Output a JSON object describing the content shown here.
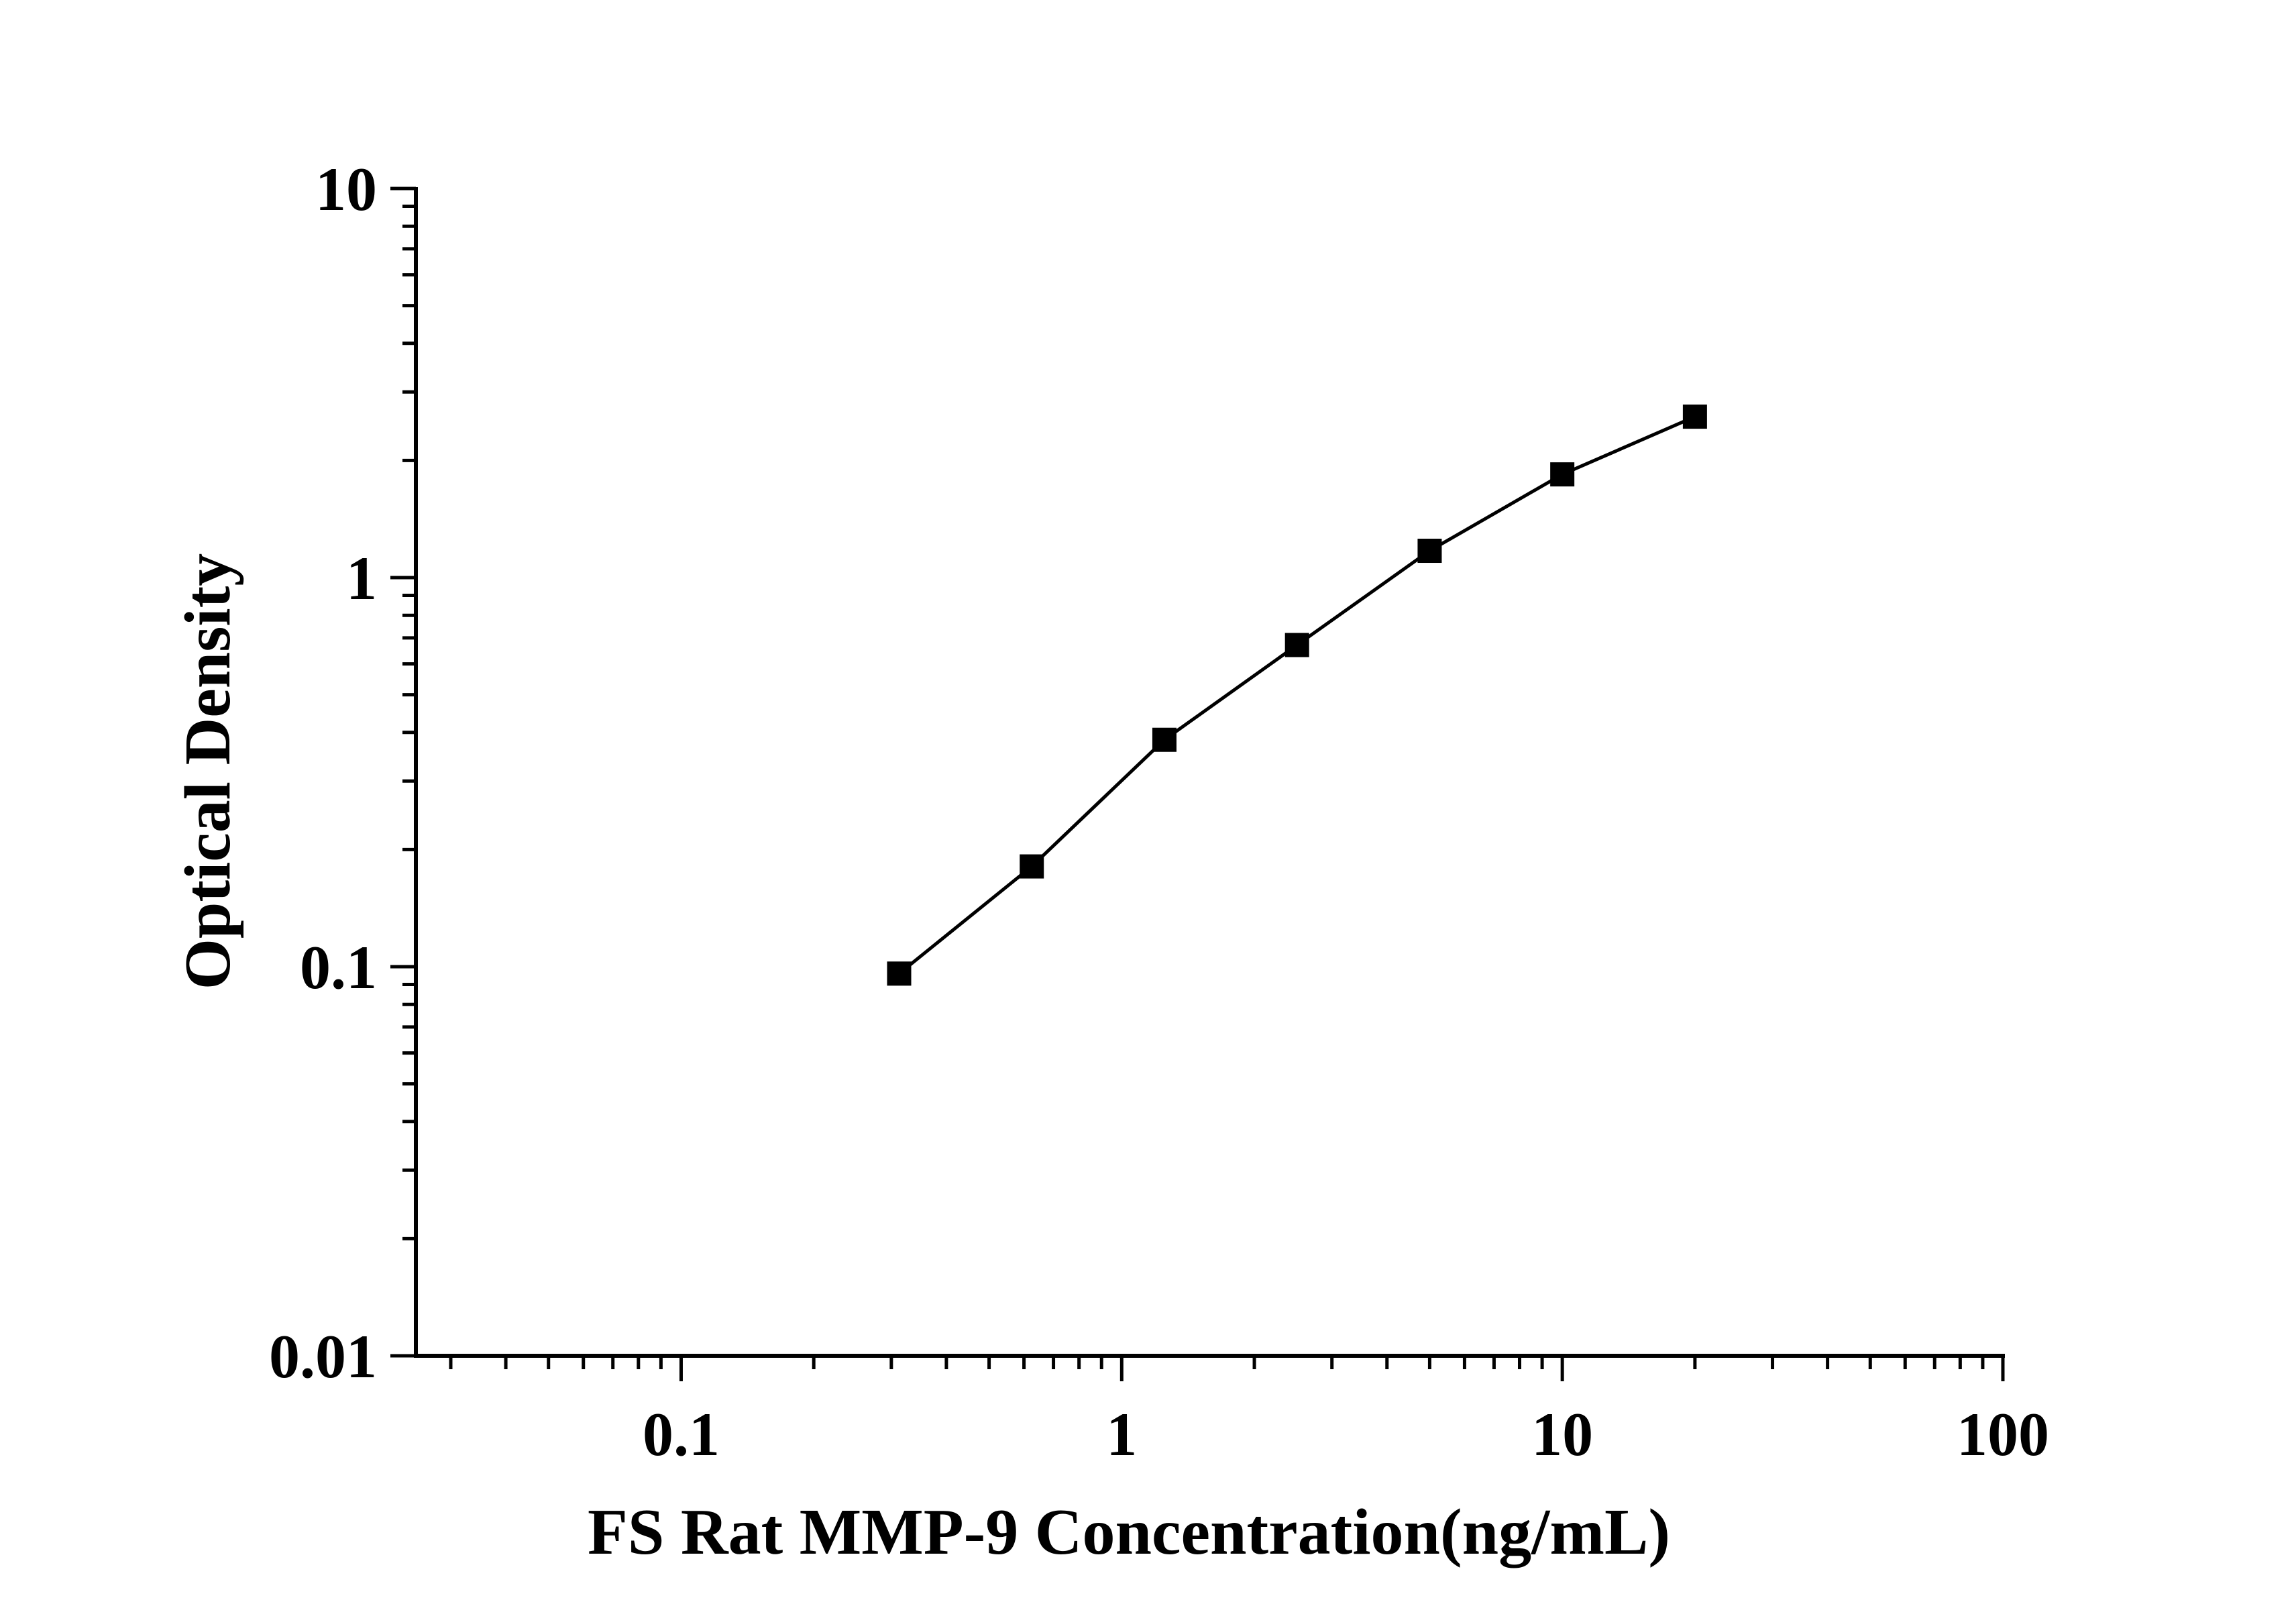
{
  "chart_data": {
    "type": "line",
    "title": "",
    "xlabel": "FS Rat MMP-9 Concentration(ng/mL)",
    "ylabel": "Optical Density",
    "x_scale": "log",
    "y_scale": "log",
    "xlim": [
      0.025,
      100
    ],
    "ylim": [
      0.01,
      10
    ],
    "x_ticks": [
      {
        "value": 0.1,
        "label": "0.1"
      },
      {
        "value": 1,
        "label": "1"
      },
      {
        "value": 10,
        "label": "10"
      },
      {
        "value": 100,
        "label": "100"
      }
    ],
    "y_ticks": [
      {
        "value": 0.01,
        "label": "0.01"
      },
      {
        "value": 0.1,
        "label": "0.1"
      },
      {
        "value": 1,
        "label": "1"
      },
      {
        "value": 10,
        "label": "10"
      }
    ],
    "grid": false,
    "legend": "none",
    "marker": "square",
    "color": "#000000",
    "series": [
      {
        "x": [
          0.3125,
          0.625,
          1.25,
          2.5,
          5,
          10,
          20
        ],
        "y": [
          0.096,
          0.181,
          0.383,
          0.671,
          1.172,
          1.842,
          2.592
        ]
      }
    ]
  }
}
